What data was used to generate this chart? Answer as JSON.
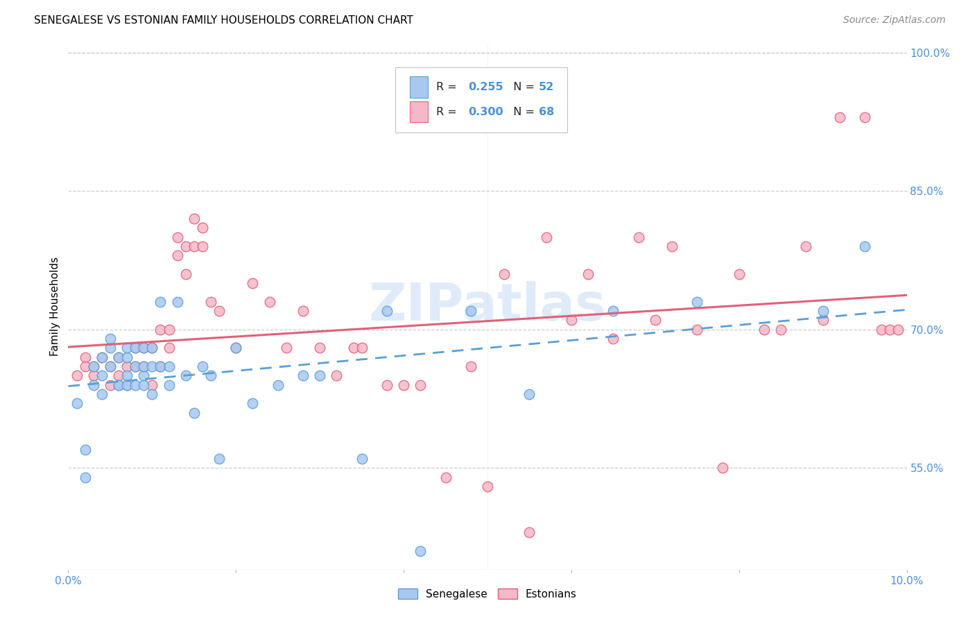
{
  "title": "SENEGALESE VS ESTONIAN FAMILY HOUSEHOLDS CORRELATION CHART",
  "source": "Source: ZipAtlas.com",
  "ylabel": "Family Households",
  "senegalese_color": "#a8c8f0",
  "estonian_color": "#f5b8c8",
  "senegalese_edge_color": "#5a9fd4",
  "estonian_edge_color": "#e0607a",
  "senegalese_line_color": "#5a9fd4",
  "estonian_line_color": "#e0607a",
  "watermark": "ZIPatlas",
  "senegalese_x": [
    0.001,
    0.002,
    0.002,
    0.003,
    0.003,
    0.004,
    0.004,
    0.004,
    0.005,
    0.005,
    0.005,
    0.006,
    0.006,
    0.006,
    0.007,
    0.007,
    0.007,
    0.007,
    0.008,
    0.008,
    0.008,
    0.009,
    0.009,
    0.009,
    0.009,
    0.01,
    0.01,
    0.01,
    0.011,
    0.011,
    0.012,
    0.012,
    0.013,
    0.014,
    0.015,
    0.016,
    0.017,
    0.018,
    0.02,
    0.022,
    0.025,
    0.028,
    0.03,
    0.035,
    0.038,
    0.042,
    0.048,
    0.055,
    0.065,
    0.075,
    0.09,
    0.095
  ],
  "senegalese_y": [
    0.62,
    0.54,
    0.57,
    0.64,
    0.66,
    0.63,
    0.67,
    0.65,
    0.68,
    0.66,
    0.69,
    0.64,
    0.67,
    0.64,
    0.64,
    0.65,
    0.67,
    0.68,
    0.64,
    0.66,
    0.68,
    0.64,
    0.65,
    0.66,
    0.68,
    0.63,
    0.66,
    0.68,
    0.66,
    0.73,
    0.64,
    0.66,
    0.73,
    0.65,
    0.61,
    0.66,
    0.65,
    0.56,
    0.68,
    0.62,
    0.64,
    0.65,
    0.65,
    0.56,
    0.72,
    0.46,
    0.72,
    0.63,
    0.72,
    0.73,
    0.72,
    0.79
  ],
  "estonian_x": [
    0.001,
    0.002,
    0.002,
    0.003,
    0.003,
    0.004,
    0.005,
    0.005,
    0.006,
    0.006,
    0.007,
    0.007,
    0.008,
    0.008,
    0.009,
    0.009,
    0.01,
    0.01,
    0.011,
    0.011,
    0.012,
    0.012,
    0.013,
    0.013,
    0.014,
    0.014,
    0.015,
    0.015,
    0.016,
    0.016,
    0.017,
    0.018,
    0.02,
    0.022,
    0.024,
    0.026,
    0.028,
    0.03,
    0.032,
    0.034,
    0.038,
    0.04,
    0.045,
    0.05,
    0.055,
    0.06,
    0.065,
    0.07,
    0.075,
    0.08,
    0.085,
    0.09,
    0.035,
    0.042,
    0.048,
    0.052,
    0.057,
    0.062,
    0.068,
    0.072,
    0.078,
    0.083,
    0.088,
    0.092,
    0.095,
    0.097,
    0.098,
    0.099
  ],
  "estonian_y": [
    0.65,
    0.67,
    0.66,
    0.66,
    0.65,
    0.67,
    0.64,
    0.66,
    0.67,
    0.65,
    0.64,
    0.66,
    0.66,
    0.68,
    0.66,
    0.68,
    0.64,
    0.68,
    0.66,
    0.7,
    0.68,
    0.7,
    0.78,
    0.8,
    0.79,
    0.76,
    0.79,
    0.82,
    0.79,
    0.81,
    0.73,
    0.72,
    0.68,
    0.75,
    0.73,
    0.68,
    0.72,
    0.68,
    0.65,
    0.68,
    0.64,
    0.64,
    0.54,
    0.53,
    0.48,
    0.71,
    0.69,
    0.71,
    0.7,
    0.76,
    0.7,
    0.71,
    0.68,
    0.64,
    0.66,
    0.76,
    0.8,
    0.76,
    0.8,
    0.79,
    0.55,
    0.7,
    0.79,
    0.93,
    0.93,
    0.7,
    0.7,
    0.7
  ],
  "xlim": [
    0.0,
    0.1
  ],
  "ylim": [
    0.44,
    1.01
  ],
  "y_ticks": [
    0.55,
    0.7,
    0.85,
    1.0
  ],
  "x_tick_positions": [
    0.0,
    0.02,
    0.04,
    0.06,
    0.08,
    0.1
  ],
  "background_color": "#ffffff",
  "grid_color": "#cccccc",
  "title_fontsize": 11,
  "source_fontsize": 10,
  "tick_fontsize": 11,
  "ylabel_fontsize": 11
}
